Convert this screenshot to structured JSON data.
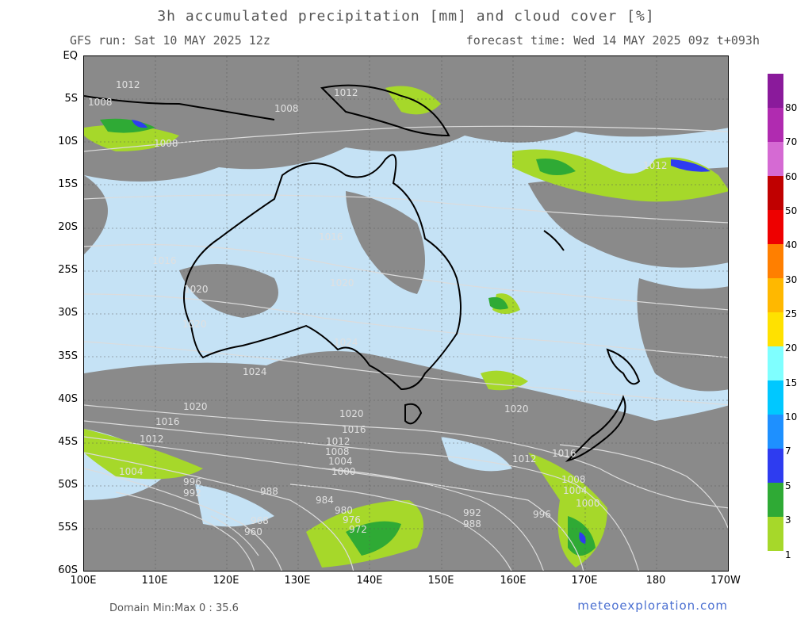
{
  "header": {
    "title": "3h accumulated precipitation [mm] and cloud cover [%]",
    "run": "GFS run: Sat 10 MAY 2025 12z",
    "forecast": "forecast time: Wed 14 MAY 2025 09z  t+093h"
  },
  "axes": {
    "lat_labels": [
      "EQ",
      "5S",
      "10S",
      "15S",
      "20S",
      "25S",
      "30S",
      "35S",
      "40S",
      "45S",
      "50S",
      "55S",
      "60S"
    ],
    "lon_labels": [
      "100E",
      "110E",
      "120E",
      "130E",
      "140E",
      "150E",
      "160E",
      "170E",
      "180",
      "170W"
    ]
  },
  "legend": {
    "labels": [
      "80",
      "70",
      "60",
      "50",
      "40",
      "30",
      "25",
      "20",
      "15",
      "10",
      "7",
      "5",
      "3",
      "1"
    ],
    "colors": [
      "#8a1a9b",
      "#b02bb0",
      "#d56ad3",
      "#c00000",
      "#ee0000",
      "#ff7f00",
      "#ffb800",
      "#ffe100",
      "#7fffff",
      "#00c8ff",
      "#1e90ff",
      "#2e3cf0",
      "#2faa35",
      "#a6d82a"
    ]
  },
  "isobar_labels": [
    "1008",
    "1008",
    "1012",
    "1008",
    "1012",
    "1016",
    "1016",
    "1020",
    "1020",
    "1020",
    "1024",
    "1024",
    "1020",
    "1016",
    "1020",
    "1016",
    "1012",
    "1012",
    "1008",
    "1004",
    "1000",
    "1016",
    "1012",
    "1008",
    "1004",
    "1000",
    "1004",
    "996",
    "992",
    "988",
    "984",
    "980",
    "976",
    "972",
    "968",
    "960",
    "992",
    "988",
    "996",
    "1012",
    "1020"
  ],
  "footer": {
    "minmax": "Domain Min:Max 0 : 35.6",
    "site": "meteoexploration.com"
  },
  "colors": {
    "cloud_grey": "#8a8a8a",
    "clear_sky": "#c5e2f5",
    "coast": "#000000",
    "isobar": "#dcdcdc"
  }
}
